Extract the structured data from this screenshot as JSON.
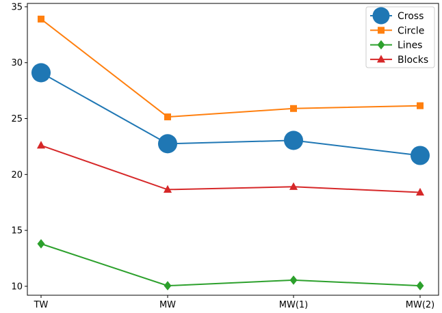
{
  "chart_data": {
    "type": "line",
    "categories": [
      "TW",
      "MW",
      "MW(1)",
      "MW(2)"
    ],
    "yticks": [
      10,
      15,
      20,
      25,
      30,
      35
    ],
    "ylim": [
      9.2,
      35.3
    ],
    "grid": false,
    "legend_position": "top-right",
    "series": [
      {
        "name": "Cross",
        "color": "#1f77b4",
        "marker": "circle",
        "values": [
          29.1,
          22.75,
          23.05,
          21.7
        ]
      },
      {
        "name": "Circle",
        "color": "#ff7f0e",
        "marker": "square",
        "values": [
          33.9,
          25.15,
          25.9,
          26.15
        ]
      },
      {
        "name": "Lines",
        "color": "#2ca02c",
        "marker": "diamond",
        "values": [
          13.8,
          10.05,
          10.55,
          10.05
        ]
      },
      {
        "name": "Blocks",
        "color": "#d62728",
        "marker": "triangle",
        "values": [
          22.6,
          18.65,
          18.9,
          18.4
        ]
      }
    ]
  }
}
